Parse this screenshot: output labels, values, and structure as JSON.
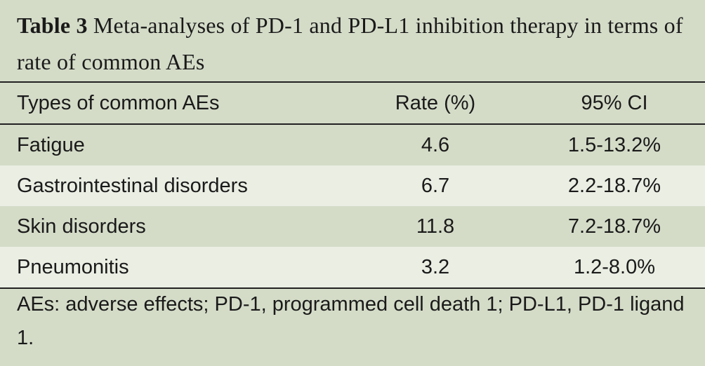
{
  "caption": {
    "label": "Table 3",
    "text": "Meta-analyses of PD-1 and PD-L1 inhibition therapy in terms of rate of common AEs"
  },
  "table": {
    "headers": [
      "Types of common AEs",
      "Rate (%)",
      "95% CI"
    ],
    "rows": [
      {
        "type": "Fatigue",
        "rate": "4.6",
        "ci": "1.5-13.2%"
      },
      {
        "type": "Gastrointestinal disorders",
        "rate": "6.7",
        "ci": "2.2-18.7%"
      },
      {
        "type": "Skin disorders",
        "rate": "11.8",
        "ci": "7.2-18.7%"
      },
      {
        "type": "Pneumonitis",
        "rate": "3.2",
        "ci": "1.2-8.0%"
      }
    ]
  },
  "footnote": "AEs: adverse effects; PD-1, programmed cell death 1; PD-L1, PD-1 ligand 1.",
  "colors": {
    "background": "#d4dcc8",
    "row_light": "#eaeee3",
    "rule": "#222222"
  }
}
